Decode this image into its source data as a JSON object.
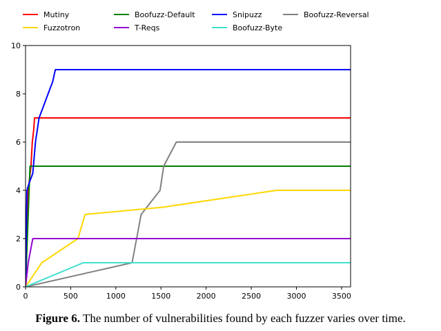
{
  "chart_data": {
    "type": "line",
    "title": "",
    "xlabel": "",
    "ylabel": "",
    "xlim": [
      0,
      3600
    ],
    "ylim": [
      0,
      10
    ],
    "xticks": [
      0,
      500,
      1000,
      1500,
      2000,
      2500,
      3000,
      3500
    ],
    "yticks": [
      0,
      2,
      4,
      6,
      8,
      10
    ],
    "grid": false,
    "legend_position": "top",
    "series": [
      {
        "name": "Mutiny",
        "color": "#ff0000",
        "x": [
          0,
          10,
          30,
          60,
          75,
          90,
          100,
          3600
        ],
        "y": [
          0,
          2,
          4,
          5,
          6,
          6.5,
          7,
          7
        ]
      },
      {
        "name": "Boofuzz-Default",
        "color": "#008000",
        "x": [
          0,
          40,
          50,
          3600
        ],
        "y": [
          0,
          4,
          5,
          5
        ]
      },
      {
        "name": "Snipuzz",
        "color": "#0000ff",
        "x": [
          0,
          15,
          40,
          80,
          110,
          150,
          200,
          250,
          300,
          330,
          3600
        ],
        "y": [
          0,
          4,
          4.3,
          4.7,
          6,
          7,
          7.5,
          8,
          8.5,
          9,
          9
        ]
      },
      {
        "name": "Boofuzz-Reversal",
        "color": "#808080",
        "x": [
          0,
          1180,
          1280,
          1490,
          1530,
          1670,
          3600
        ],
        "y": [
          0,
          1,
          3,
          4,
          5,
          6,
          6
        ]
      },
      {
        "name": "Fuzzotron",
        "color": "#ffd700",
        "x": [
          0,
          180,
          580,
          660,
          1520,
          2780,
          3600
        ],
        "y": [
          0,
          1,
          2,
          3,
          3.3,
          4,
          4
        ]
      },
      {
        "name": "T-Reqs",
        "color": "#9400d3",
        "x": [
          0,
          30,
          80,
          3600
        ],
        "y": [
          0,
          1,
          2,
          2
        ]
      },
      {
        "name": "Boofuzz-Byte",
        "color": "#40e0d0",
        "x": [
          0,
          640,
          3600
        ],
        "y": [
          0,
          1,
          1
        ]
      }
    ]
  },
  "caption": {
    "label": "Figure 6.",
    "text": " The number of vulnerabilities found by each fuzzer varies over time."
  }
}
